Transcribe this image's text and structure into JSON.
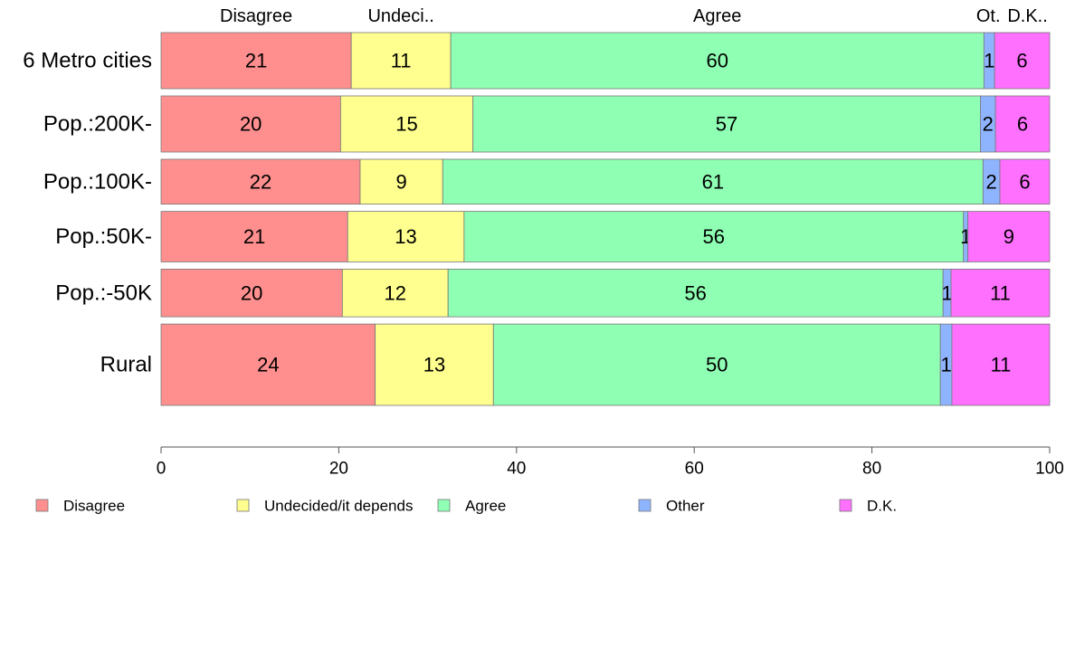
{
  "chart_data": {
    "type": "bar",
    "orientation": "horizontal",
    "stacked": true,
    "categories": [
      "6 Metro cities",
      "Pop.:200K-",
      "Pop.:100K-",
      "Pop.:50K-",
      "Pop.:-50K",
      "Rural"
    ],
    "series": [
      {
        "name": "Disagree",
        "column_header": "Disagree",
        "color": "#ff8f8f",
        "values": [
          21.4,
          20.2,
          22.4,
          21.0,
          20.4,
          24.1
        ],
        "labels": [
          "21",
          "20",
          "22",
          "21",
          "20",
          "24"
        ]
      },
      {
        "name": "Undecided/it depends",
        "column_header": "Undeci..",
        "color": "#ffff8f",
        "values": [
          11.2,
          14.9,
          9.3,
          13.1,
          11.9,
          13.3
        ],
        "labels": [
          "11",
          "15",
          "9",
          "13",
          "12",
          "13"
        ]
      },
      {
        "name": "Agree",
        "column_header": "Agree",
        "color": "#8fffb4",
        "values": [
          60.0,
          57.1,
          60.8,
          56.2,
          55.7,
          50.3
        ],
        "labels": [
          "60",
          "57",
          "61",
          "56",
          "56",
          "50"
        ]
      },
      {
        "name": "Other",
        "column_header": "Ot.",
        "color": "#8fb4ff",
        "values": [
          1.2,
          1.7,
          1.9,
          0.5,
          0.9,
          1.3
        ],
        "labels": [
          "1",
          "2",
          "2",
          "1",
          "1",
          "1"
        ]
      },
      {
        "name": "D.K.",
        "column_header": "D.K..",
        "color": "#ff70ff",
        "values": [
          6.2,
          6.1,
          5.6,
          9.2,
          11.1,
          11.0
        ],
        "labels": [
          "6",
          "6",
          "6",
          "9",
          "11",
          "11"
        ]
      }
    ],
    "xlim": [
      0,
      100
    ],
    "xticks": [
      0,
      20,
      40,
      60,
      80,
      100
    ],
    "bar_thickness": [
      1.0,
      1.0,
      0.8,
      0.9,
      0.85,
      1.45
    ],
    "legend": {
      "position": "bottom"
    }
  }
}
